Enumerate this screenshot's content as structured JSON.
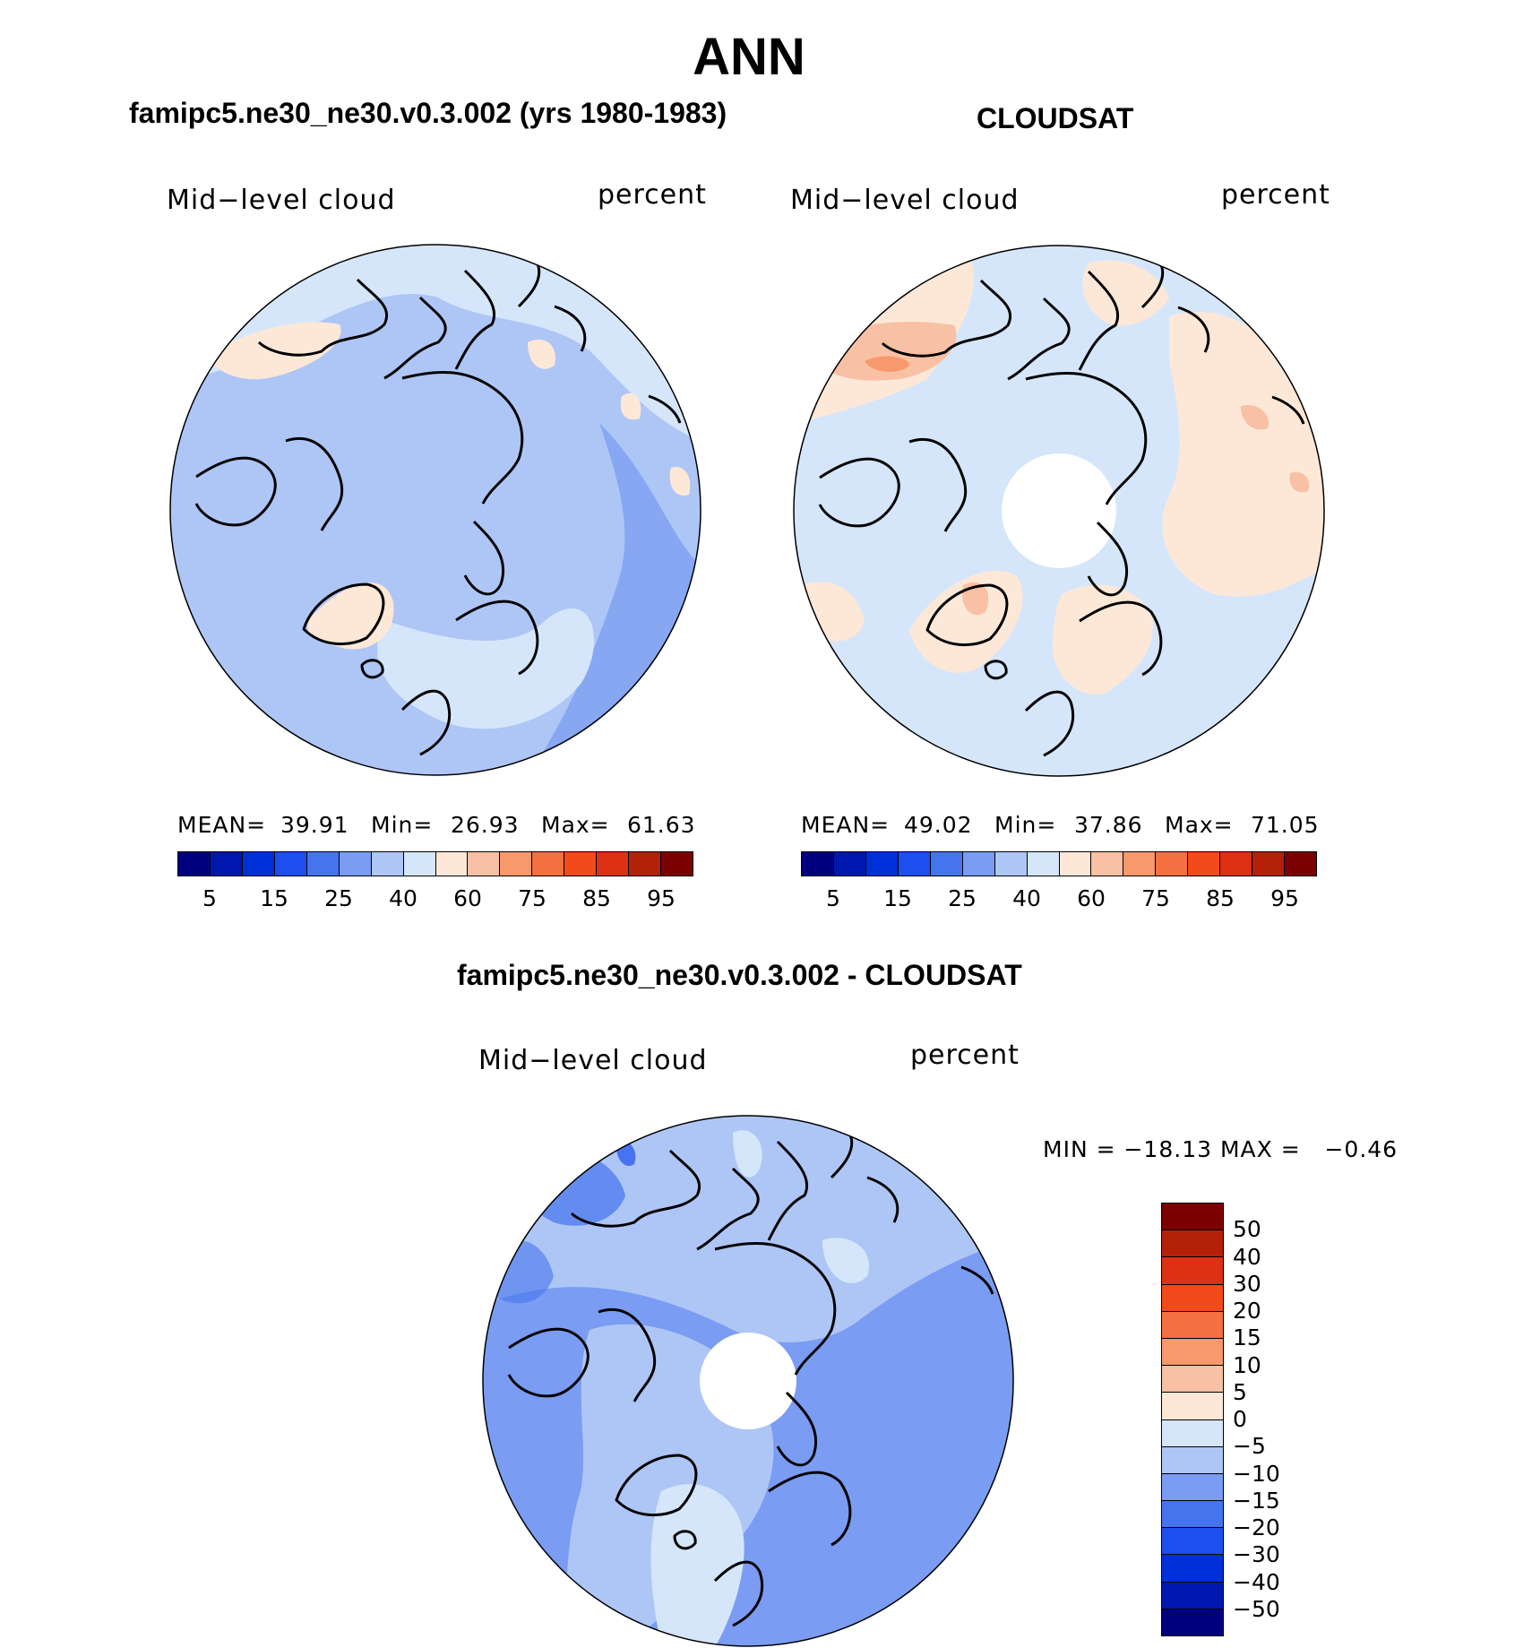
{
  "title": "ANN",
  "colors": {
    "abs_scale": [
      "#00007f",
      "#0018b0",
      "#0030d8",
      "#1c4ef0",
      "#4474ee",
      "#7a9cf2",
      "#aec6f6",
      "#d6e6fa",
      "#fde8d8",
      "#f8c0a4",
      "#f7996c",
      "#f47040",
      "#f34a1a",
      "#de3012",
      "#b52008",
      "#7d0000"
    ],
    "diff_scale": [
      "#7d0000",
      "#b52008",
      "#de3012",
      "#f34a1a",
      "#f47040",
      "#f7996c",
      "#f8c0a4",
      "#fde8d8",
      "#d6e6fa",
      "#aec6f6",
      "#7a9cf2",
      "#4474ee",
      "#1c4ef0",
      "#0030d8",
      "#0018b0",
      "#00007f"
    ]
  },
  "panels": {
    "model": {
      "title": "famipc5.ne30_ne30.v0.3.002 (yrs 1980-1983)",
      "left_label": "Mid−level cloud",
      "right_label": "percent",
      "stats": {
        "mean_label": "MEAN=",
        "mean": "39.91",
        "min_label": "Min=",
        "min": "26.93",
        "max_label": "Max=",
        "max": "61.63"
      },
      "ticks": [
        "5",
        "15",
        "25",
        "40",
        "60",
        "75",
        "85",
        "95"
      ]
    },
    "obs": {
      "title": "CLOUDSAT",
      "left_label": "Mid−level cloud",
      "right_label": "percent",
      "stats": {
        "mean_label": "MEAN=",
        "mean": "49.02",
        "min_label": "Min=",
        "min": "37.86",
        "max_label": "Max=",
        "max": "71.05"
      },
      "ticks": [
        "5",
        "15",
        "25",
        "40",
        "60",
        "75",
        "85",
        "95"
      ]
    },
    "diff": {
      "title": "famipc5.ne30_ne30.v0.3.002 - CLOUDSAT",
      "left_label": "Mid−level cloud",
      "right_label": "percent",
      "range_text": "MIN = −18.13 MAX =   −0.46",
      "ticks": [
        "50",
        "40",
        "30",
        "20",
        "15",
        "10",
        "5",
        "0",
        "−5",
        "−10",
        "−15",
        "−20",
        "−30",
        "−40",
        "−50"
      ]
    }
  }
}
